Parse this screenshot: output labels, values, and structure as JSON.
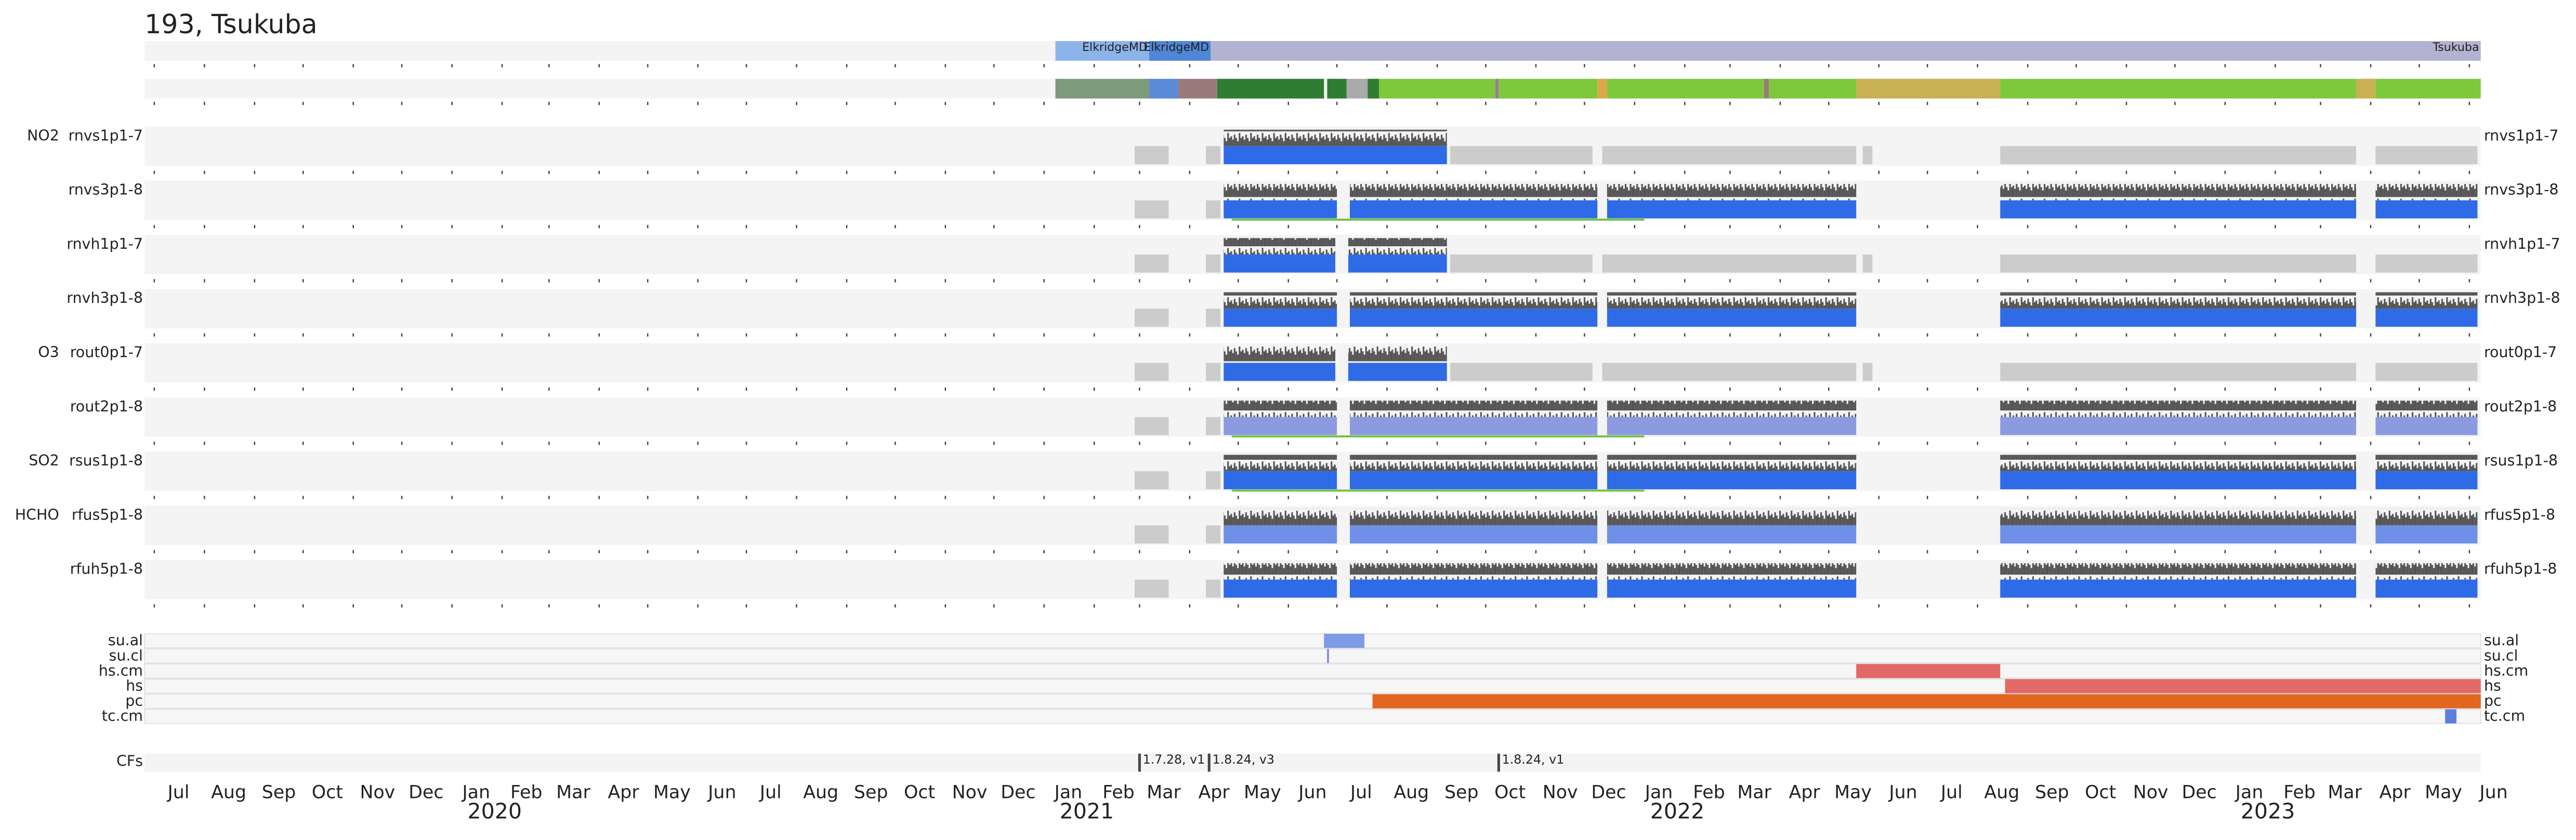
{
  "chart_data": {
    "type": "timeline",
    "title": "193, Tsukuba",
    "xlim": [
      "2019-06-25",
      "2023-06-08"
    ],
    "xticks": [
      {
        "value": "2019-07-01",
        "label": "Jul"
      },
      {
        "value": "2019-08-01",
        "label": "Aug"
      },
      {
        "value": "2019-09-01",
        "label": "Sep"
      },
      {
        "value": "2019-10-01",
        "label": "Oct"
      },
      {
        "value": "2019-11-01",
        "label": "Nov"
      },
      {
        "value": "2019-12-01",
        "label": "Dec"
      },
      {
        "value": "2020-01-01",
        "label": "Jan"
      },
      {
        "value": "2020-02-01",
        "label": "Feb"
      },
      {
        "value": "2020-03-01",
        "label": "Mar"
      },
      {
        "value": "2020-04-01",
        "label": "Apr"
      },
      {
        "value": "2020-05-01",
        "label": "May"
      },
      {
        "value": "2020-06-01",
        "label": "Jun"
      },
      {
        "value": "2020-07-01",
        "label": "Jul"
      },
      {
        "value": "2020-08-01",
        "label": "Aug"
      },
      {
        "value": "2020-09-01",
        "label": "Sep"
      },
      {
        "value": "2020-10-01",
        "label": "Oct"
      },
      {
        "value": "2020-11-01",
        "label": "Nov"
      },
      {
        "value": "2020-12-01",
        "label": "Dec"
      },
      {
        "value": "2021-01-01",
        "label": "Jan"
      },
      {
        "value": "2021-02-01",
        "label": "Feb"
      },
      {
        "value": "2021-03-01",
        "label": "Mar"
      },
      {
        "value": "2021-04-01",
        "label": "Apr"
      },
      {
        "value": "2021-05-01",
        "label": "May"
      },
      {
        "value": "2021-06-01",
        "label": "Jun"
      },
      {
        "value": "2021-07-01",
        "label": "Jul"
      },
      {
        "value": "2021-08-01",
        "label": "Aug"
      },
      {
        "value": "2021-09-01",
        "label": "Sep"
      },
      {
        "value": "2021-10-01",
        "label": "Oct"
      },
      {
        "value": "2021-11-01",
        "label": "Nov"
      },
      {
        "value": "2021-12-01",
        "label": "Dec"
      },
      {
        "value": "2022-01-01",
        "label": "Jan"
      },
      {
        "value": "2022-02-01",
        "label": "Feb"
      },
      {
        "value": "2022-03-01",
        "label": "Mar"
      },
      {
        "value": "2022-04-01",
        "label": "Apr"
      },
      {
        "value": "2022-05-01",
        "label": "May"
      },
      {
        "value": "2022-06-01",
        "label": "Jun"
      },
      {
        "value": "2022-07-01",
        "label": "Jul"
      },
      {
        "value": "2022-08-01",
        "label": "Aug"
      },
      {
        "value": "2022-09-01",
        "label": "Sep"
      },
      {
        "value": "2022-10-01",
        "label": "Oct"
      },
      {
        "value": "2022-11-01",
        "label": "Nov"
      },
      {
        "value": "2022-12-01",
        "label": "Dec"
      },
      {
        "value": "2023-01-01",
        "label": "Jan"
      },
      {
        "value": "2023-02-01",
        "label": "Feb"
      },
      {
        "value": "2023-03-01",
        "label": "Mar"
      },
      {
        "value": "2023-04-01",
        "label": "Apr"
      },
      {
        "value": "2023-05-01",
        "label": "May"
      },
      {
        "value": "2023-06-01",
        "label": "Jun"
      }
    ],
    "years": [
      2020,
      2021,
      2022,
      2023
    ],
    "locations": [
      {
        "start": "2021-01-08",
        "end": "2021-03-07",
        "label": "ElkridgeMD",
        "color": "#8db4ea"
      },
      {
        "start": "2021-03-07",
        "end": "2021-04-14",
        "label": "ElkridgeMD",
        "color": "#4f86d6"
      },
      {
        "start": "2021-04-14",
        "end": "2023-06-08",
        "label": "Tsukuba",
        "color": "#b3b3d1"
      }
    ],
    "status": [
      {
        "start": "2021-01-08",
        "end": "2021-03-07",
        "color": "#7d9a7a"
      },
      {
        "start": "2021-03-07",
        "end": "2021-03-25",
        "color": "#5b8ad8"
      },
      {
        "start": "2021-03-25",
        "end": "2021-04-18",
        "color": "#9b7a7a"
      },
      {
        "start": "2021-04-18",
        "end": "2021-06-23",
        "color": "#2e7d32"
      },
      {
        "start": "2021-06-25",
        "end": "2021-07-07",
        "color": "#2e7d32"
      },
      {
        "start": "2021-07-07",
        "end": "2021-07-20",
        "color": "#aaaaaa"
      },
      {
        "start": "2021-07-20",
        "end": "2021-07-27",
        "color": "#2e7d32"
      },
      {
        "start": "2021-07-27",
        "end": "2021-10-07",
        "color": "#7ec83c"
      },
      {
        "start": "2021-10-07",
        "end": "2021-10-09",
        "color": "#9b7aa0"
      },
      {
        "start": "2021-10-09",
        "end": "2021-12-09",
        "color": "#7ec83c"
      },
      {
        "start": "2021-12-09",
        "end": "2021-12-15",
        "color": "#d9a84a"
      },
      {
        "start": "2021-12-15",
        "end": "2022-03-22",
        "color": "#7ec83c"
      },
      {
        "start": "2022-03-22",
        "end": "2022-03-25",
        "color": "#9b7a7a"
      },
      {
        "start": "2022-03-25",
        "end": "2022-05-18",
        "color": "#7ec83c"
      },
      {
        "start": "2022-05-18",
        "end": "2022-08-15",
        "color": "#c9b055"
      },
      {
        "start": "2022-08-15",
        "end": "2023-03-23",
        "color": "#7ec83c"
      },
      {
        "start": "2023-03-23",
        "end": "2023-04-04",
        "color": "#c9b055"
      },
      {
        "start": "2023-04-04",
        "end": "2023-06-08",
        "color": "#7ec83c"
      }
    ],
    "products": [
      {
        "group": "NO2",
        "name": "rnvs1p1-7",
        "color": "#2f6be6",
        "data": [
          [
            "2021-04-22",
            "2021-09-07"
          ]
        ],
        "nodata": [
          [
            "2021-02-26",
            "2021-03-19"
          ],
          [
            "2021-04-11",
            "2021-04-20"
          ],
          [
            "2021-09-09",
            "2021-12-06"
          ],
          [
            "2021-12-12",
            "2022-05-18"
          ],
          [
            "2022-05-22",
            "2022-05-28"
          ],
          [
            "2022-08-15",
            "2023-03-23"
          ],
          [
            "2023-04-04",
            "2023-06-06"
          ]
        ]
      },
      {
        "name": "rnvs3p1-8",
        "color": "#2f6be6",
        "data": [
          [
            "2021-04-22",
            "2021-07-01"
          ],
          [
            "2021-07-09",
            "2021-12-09"
          ],
          [
            "2021-12-15",
            "2022-05-18"
          ],
          [
            "2022-08-15",
            "2023-03-23"
          ],
          [
            "2023-04-04",
            "2023-06-06"
          ]
        ],
        "nodata": [
          [
            "2021-02-26",
            "2021-03-19"
          ],
          [
            "2021-04-11",
            "2021-04-20"
          ]
        ],
        "qa_line": [
          "2021-04-27",
          "2022-01-07"
        ]
      },
      {
        "name": "rnvh1p1-7",
        "color": "#2f6be6",
        "data": [
          [
            "2021-04-22",
            "2021-06-30"
          ],
          [
            "2021-07-08",
            "2021-09-07"
          ]
        ],
        "nodata": [
          [
            "2021-02-26",
            "2021-03-19"
          ],
          [
            "2021-04-11",
            "2021-04-20"
          ],
          [
            "2021-09-09",
            "2021-12-06"
          ],
          [
            "2021-12-12",
            "2022-05-18"
          ],
          [
            "2022-05-22",
            "2022-05-28"
          ],
          [
            "2022-08-15",
            "2023-03-23"
          ],
          [
            "2023-04-04",
            "2023-06-06"
          ]
        ]
      },
      {
        "name": "rnvh3p1-8",
        "color": "#2f6be6",
        "data": [
          [
            "2021-04-22",
            "2021-07-01"
          ],
          [
            "2021-07-09",
            "2021-12-09"
          ],
          [
            "2021-12-15",
            "2022-05-18"
          ],
          [
            "2022-08-15",
            "2023-03-23"
          ],
          [
            "2023-04-04",
            "2023-06-06"
          ]
        ],
        "nodata": [
          [
            "2021-02-26",
            "2021-03-19"
          ],
          [
            "2021-04-11",
            "2021-04-20"
          ]
        ]
      },
      {
        "group": "O3",
        "name": "rout0p1-7",
        "color": "#2f6be6",
        "data": [
          [
            "2021-04-22",
            "2021-06-30"
          ],
          [
            "2021-07-08",
            "2021-09-07"
          ]
        ],
        "nodata": [
          [
            "2021-02-26",
            "2021-03-19"
          ],
          [
            "2021-04-11",
            "2021-04-20"
          ],
          [
            "2021-09-09",
            "2021-12-06"
          ],
          [
            "2021-12-12",
            "2022-05-18"
          ],
          [
            "2022-05-22",
            "2022-05-28"
          ],
          [
            "2022-08-15",
            "2023-03-23"
          ],
          [
            "2023-04-04",
            "2023-06-06"
          ]
        ]
      },
      {
        "name": "rout2p1-8",
        "color": "#8c9be0",
        "data": [
          [
            "2021-04-22",
            "2021-07-01"
          ],
          [
            "2021-07-09",
            "2021-12-09"
          ],
          [
            "2021-12-15",
            "2022-05-18"
          ],
          [
            "2022-08-15",
            "2023-03-23"
          ],
          [
            "2023-04-04",
            "2023-06-06"
          ]
        ],
        "nodata": [
          [
            "2021-02-26",
            "2021-03-19"
          ],
          [
            "2021-04-11",
            "2021-04-20"
          ]
        ],
        "qa_line": [
          "2021-04-27",
          "2022-01-07"
        ]
      },
      {
        "group": "SO2",
        "name": "rsus1p1-8",
        "color": "#2f6be6",
        "data": [
          [
            "2021-04-22",
            "2021-07-01"
          ],
          [
            "2021-07-09",
            "2021-12-09"
          ],
          [
            "2021-12-15",
            "2022-05-18"
          ],
          [
            "2022-08-15",
            "2023-03-23"
          ],
          [
            "2023-04-04",
            "2023-06-06"
          ]
        ],
        "nodata": [
          [
            "2021-02-26",
            "2021-03-19"
          ],
          [
            "2021-04-11",
            "2021-04-20"
          ]
        ],
        "qa_line": [
          "2021-04-27",
          "2022-01-07"
        ]
      },
      {
        "group": "HCHO",
        "name": "rfus5p1-8",
        "color": "#6f8fe8",
        "data": [
          [
            "2021-04-22",
            "2021-07-01"
          ],
          [
            "2021-07-09",
            "2021-12-09"
          ],
          [
            "2021-12-15",
            "2022-05-18"
          ],
          [
            "2022-08-15",
            "2023-03-23"
          ],
          [
            "2023-04-04",
            "2023-06-06"
          ]
        ],
        "nodata": [
          [
            "2021-02-26",
            "2021-03-19"
          ],
          [
            "2021-04-11",
            "2021-04-20"
          ]
        ]
      },
      {
        "name": "rfuh5p1-8",
        "color": "#2f6be6",
        "data": [
          [
            "2021-04-22",
            "2021-07-01"
          ],
          [
            "2021-07-09",
            "2021-12-09"
          ],
          [
            "2021-12-15",
            "2022-05-18"
          ],
          [
            "2022-08-15",
            "2023-03-23"
          ],
          [
            "2023-04-04",
            "2023-06-06"
          ]
        ],
        "nodata": [
          [
            "2021-02-26",
            "2021-03-19"
          ],
          [
            "2021-04-11",
            "2021-04-20"
          ]
        ]
      }
    ],
    "flags": [
      {
        "name": "su.al",
        "color": "#7f9be6",
        "segments": [
          [
            "2021-06-23",
            "2021-07-18"
          ]
        ]
      },
      {
        "name": "su.cl",
        "color": "#5b7fe0",
        "segments": [
          [
            "2021-06-25",
            "2021-06-26"
          ]
        ]
      },
      {
        "name": "hs.cm",
        "color": "#e36868",
        "segments": [
          [
            "2022-05-18",
            "2022-08-15"
          ]
        ]
      },
      {
        "name": "hs",
        "color": "#e36868",
        "segments": [
          [
            "2022-08-18",
            "2023-06-08"
          ]
        ]
      },
      {
        "name": "pc",
        "color": "#e2661f",
        "segments": [
          [
            "2021-07-23",
            "2023-06-08"
          ]
        ]
      },
      {
        "name": "tc.cm",
        "color": "#5b7fe0",
        "segments": [
          [
            "2023-05-17",
            "2023-05-24"
          ]
        ]
      }
    ],
    "cfs_label": "CFs",
    "cfs": [
      {
        "date": "2021-03-01",
        "label": "1.7.28, v1"
      },
      {
        "date": "2021-04-13",
        "label": "1.8.24, v3"
      },
      {
        "date": "2021-10-09",
        "label": "1.8.24, v1"
      }
    ]
  }
}
